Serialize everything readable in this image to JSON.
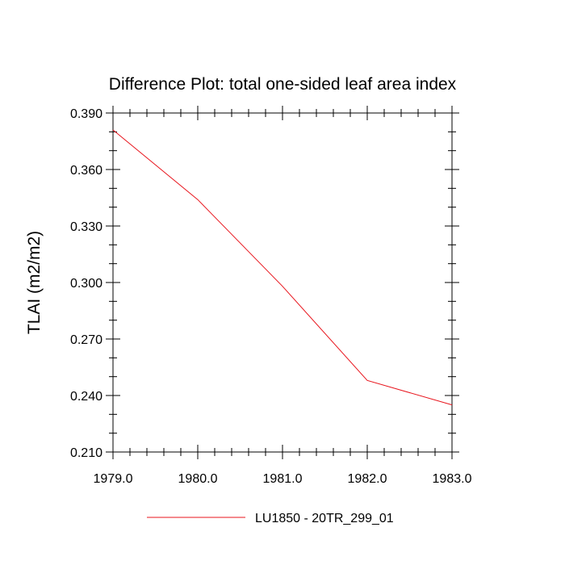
{
  "chart_data": {
    "type": "line",
    "title": "Difference Plot: total one-sided leaf area index",
    "xlabel": "",
    "ylabel": "TLAI  (m2/m2)",
    "xlim": [
      1979.0,
      1983.0
    ],
    "ylim": [
      0.21,
      0.39
    ],
    "xticks": [
      "1979.0",
      "1980.0",
      "1981.0",
      "1982.0",
      "1983.0"
    ],
    "yticks": [
      "0.390",
      "0.360",
      "0.330",
      "0.300",
      "0.270",
      "0.240",
      "0.210"
    ],
    "grid": false,
    "legend_position": "bottom-center",
    "series": [
      {
        "name": "LU1850 - 20TR_299_01",
        "color": "#e8141c",
        "x": [
          1979.0,
          1980.0,
          1981.0,
          1982.0,
          1983.0
        ],
        "y": [
          0.381,
          0.344,
          0.298,
          0.248,
          0.235
        ]
      }
    ]
  }
}
